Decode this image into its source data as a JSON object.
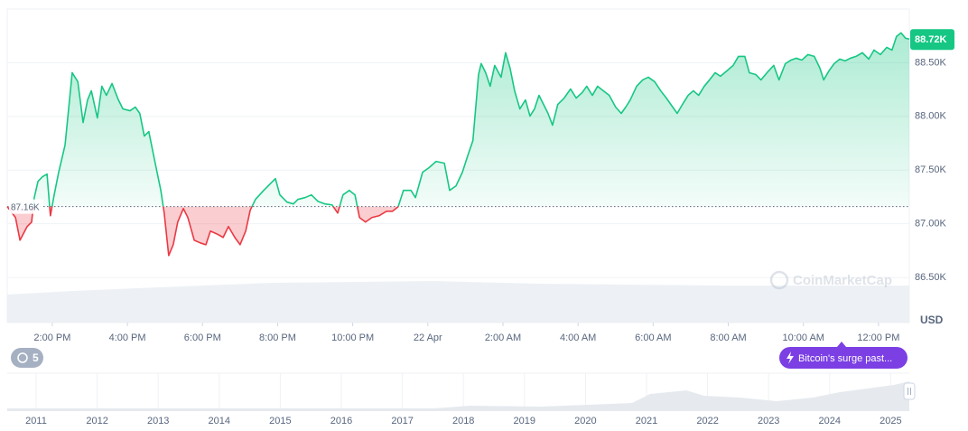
{
  "chart_data": {
    "type": "line",
    "up_color": "#16c784",
    "down_color": "#ea3943",
    "grid": true,
    "ylim": [
      86.08,
      89.0
    ],
    "yticks": [
      {
        "value": 86.5,
        "label": "86.50K"
      },
      {
        "value": 87.0,
        "label": "87.00K"
      },
      {
        "value": 87.5,
        "label": "87.50K"
      },
      {
        "value": 88.0,
        "label": "88.00K"
      },
      {
        "value": 88.5,
        "label": "88.50K"
      }
    ],
    "xlim": [
      12.8,
      36.82
    ],
    "xticks": [
      {
        "value": 14,
        "label": "2:00 PM"
      },
      {
        "value": 16,
        "label": "4:00 PM"
      },
      {
        "value": 18,
        "label": "6:00 PM"
      },
      {
        "value": 20,
        "label": "8:00 PM"
      },
      {
        "value": 22,
        "label": "10:00 PM"
      },
      {
        "value": 24,
        "label": "22 Apr"
      },
      {
        "value": 26,
        "label": "2:00 AM"
      },
      {
        "value": 28,
        "label": "4:00 AM"
      },
      {
        "value": 30,
        "label": "6:00 AM"
      },
      {
        "value": 32,
        "label": "8:00 AM"
      },
      {
        "value": 34,
        "label": "10:00 AM"
      },
      {
        "value": 36,
        "label": "12:00 PM"
      }
    ],
    "baseline": {
      "value": 87.16,
      "label": "87.16K"
    },
    "last_price": {
      "value": 88.72,
      "label": "88.72K"
    },
    "currency": "USD",
    "watermark": "CoinMarketCap",
    "event_count": 5,
    "news_label": "Bitcoin's surge past...",
    "navigator_years": [
      "2011",
      "2012",
      "2013",
      "2014",
      "2015",
      "2016",
      "2017",
      "2018",
      "2019",
      "2020",
      "2021",
      "2022",
      "2023",
      "2024",
      "2025"
    ],
    "x": [
      12.8,
      13.02,
      13.14,
      13.33,
      13.45,
      13.52,
      13.62,
      13.74,
      13.86,
      13.95,
      14.05,
      14.17,
      14.34,
      14.53,
      14.68,
      14.82,
      14.94,
      15.04,
      15.2,
      15.32,
      15.44,
      15.59,
      15.76,
      15.88,
      16.07,
      16.21,
      16.33,
      16.45,
      16.57,
      16.74,
      16.89,
      16.98,
      17.1,
      17.22,
      17.34,
      17.49,
      17.61,
      17.78,
      17.94,
      18.09,
      18.21,
      18.38,
      18.55,
      18.69,
      18.86,
      19.0,
      19.15,
      19.27,
      19.41,
      19.63,
      19.75,
      19.94,
      20.06,
      20.25,
      20.42,
      20.54,
      20.73,
      20.9,
      21.07,
      21.26,
      21.45,
      21.6,
      21.74,
      21.91,
      22.06,
      22.18,
      22.34,
      22.51,
      22.7,
      22.9,
      23.06,
      23.21,
      23.35,
      23.55,
      23.67,
      23.86,
      24.03,
      24.22,
      24.44,
      24.58,
      24.75,
      24.92,
      25.06,
      25.2,
      25.35,
      25.42,
      25.54,
      25.66,
      25.78,
      25.95,
      26.07,
      26.19,
      26.31,
      26.45,
      26.6,
      26.72,
      26.84,
      26.96,
      27.08,
      27.2,
      27.32,
      27.46,
      27.63,
      27.8,
      27.95,
      28.11,
      28.23,
      28.38,
      28.52,
      28.67,
      28.83,
      29.0,
      29.15,
      29.27,
      29.39,
      29.56,
      29.72,
      29.87,
      30.04,
      30.2,
      30.35,
      30.52,
      30.64,
      30.78,
      30.93,
      31.07,
      31.21,
      31.36,
      31.5,
      31.65,
      31.79,
      31.96,
      32.13,
      32.27,
      32.44,
      32.56,
      32.73,
      32.87,
      33.03,
      33.21,
      33.35,
      33.52,
      33.67,
      33.81,
      33.96,
      34.12,
      34.29,
      34.44,
      34.54,
      34.68,
      34.82,
      34.97,
      35.11,
      35.25,
      35.4,
      35.57,
      35.74,
      35.88,
      36.05,
      36.22,
      36.36,
      36.48,
      36.6,
      36.72,
      36.82
    ],
    "values": [
      87.16,
      87.058,
      86.847,
      86.974,
      87.016,
      87.244,
      87.395,
      87.438,
      87.463,
      87.075,
      87.269,
      87.48,
      87.733,
      88.407,
      88.323,
      87.943,
      88.154,
      88.239,
      87.986,
      88.281,
      88.196,
      88.306,
      88.154,
      88.07,
      88.053,
      88.087,
      88.028,
      87.817,
      87.859,
      87.564,
      87.311,
      87.1,
      86.704,
      86.805,
      87.016,
      87.142,
      87.058,
      86.847,
      86.822,
      86.805,
      86.932,
      86.906,
      86.873,
      86.974,
      86.873,
      86.805,
      86.932,
      87.126,
      87.227,
      87.311,
      87.353,
      87.421,
      87.269,
      87.202,
      87.185,
      87.227,
      87.244,
      87.269,
      87.21,
      87.185,
      87.176,
      87.1,
      87.269,
      87.311,
      87.269,
      87.058,
      87.016,
      87.058,
      87.075,
      87.117,
      87.117,
      87.159,
      87.311,
      87.311,
      87.244,
      87.48,
      87.522,
      87.581,
      87.564,
      87.311,
      87.353,
      87.48,
      87.632,
      87.775,
      88.39,
      88.492,
      88.407,
      88.281,
      88.475,
      88.365,
      88.593,
      88.449,
      88.239,
      88.07,
      88.154,
      88.003,
      88.07,
      88.196,
      88.112,
      88.028,
      87.918,
      88.112,
      88.171,
      88.256,
      88.171,
      88.222,
      88.281,
      88.196,
      88.281,
      88.239,
      88.196,
      88.087,
      88.028,
      88.087,
      88.154,
      88.281,
      88.34,
      88.365,
      88.323,
      88.239,
      88.171,
      88.087,
      88.028,
      88.112,
      88.196,
      88.239,
      88.196,
      88.281,
      88.34,
      88.407,
      88.374,
      88.424,
      88.475,
      88.559,
      88.559,
      88.407,
      88.39,
      88.34,
      88.407,
      88.475,
      88.34,
      88.492,
      88.525,
      88.542,
      88.525,
      88.576,
      88.559,
      88.449,
      88.34,
      88.424,
      88.492,
      88.534,
      88.517,
      88.542,
      88.559,
      88.593,
      88.534,
      88.618,
      88.576,
      88.643,
      88.618,
      88.745,
      88.778,
      88.728,
      88.72
    ]
  }
}
